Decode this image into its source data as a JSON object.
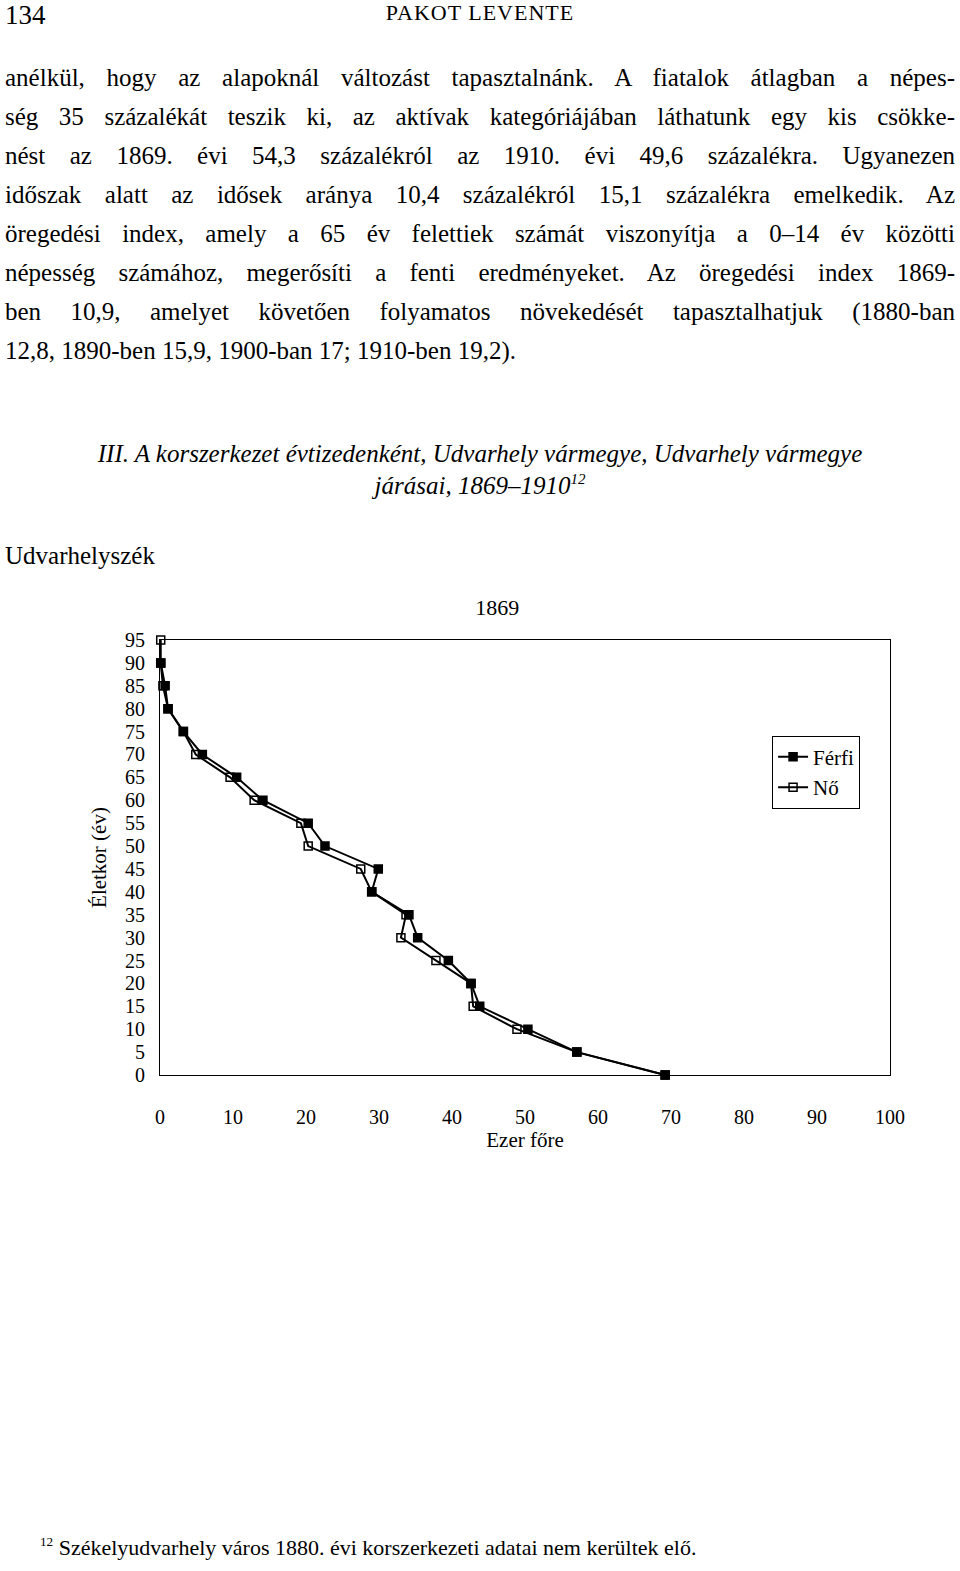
{
  "header": {
    "page_number": "134",
    "author": "PAKOT LEVENTE"
  },
  "paragraph_lines": [
    "anélkül, hogy az alapoknál változást tapasztalnánk. A fiatalok átlagban a népes-",
    "ség 35 százalékát teszik ki, az aktívak kategóriájában láthatunk egy kis csökke-",
    "nést az 1869. évi 54,3 százalékról az 1910. évi 49,6 százalékra. Ugyanezen",
    "időszak alatt az idősek aránya 10,4 százalékról 15,1 százalékra emelkedik. Az",
    "öregedési index, amely a 65 év felettiek számát viszonyítja a 0–14 év közötti",
    "népesség számához, megerősíti a fenti eredményeket. Az öregedési index 1869-",
    "ben 10,9, amelyet követően folyamatos növekedését tapasztalhatjuk (1880-ban",
    "12,8, 1890-ben 15,9, 1900-ban 17; 1910-ben 19,2)."
  ],
  "caption": {
    "lines": [
      "III. A korszerkezet évtizedenként, Udvarhely vármegye, Udvarhely vármegye",
      "járásai, 1869–1910"
    ],
    "footnote_mark": "12"
  },
  "region": "Udvarhelyszék",
  "chart_data": {
    "type": "line",
    "orientation": "horizontal",
    "title": "1869",
    "x_label": "Ezer főre",
    "y_label": "Életkor (év)",
    "y": [
      0,
      5,
      10,
      15,
      20,
      25,
      30,
      35,
      40,
      45,
      50,
      55,
      60,
      65,
      70,
      75,
      80,
      85,
      90,
      95
    ],
    "series": [
      {
        "name": "Férfi",
        "color": "#000000",
        "marker": "square",
        "line_style": "solid",
        "values": [
          69.2,
          57.1,
          50.4,
          43.8,
          42.6,
          39.5,
          35.3,
          34.1,
          29.0,
          29.9,
          22.6,
          20.3,
          14.1,
          10.5,
          5.8,
          3.2,
          1.1,
          0.7,
          0.1,
          null
        ]
      },
      {
        "name": "Nő",
        "color": "#000000",
        "marker": "square-open",
        "line_style": "solid",
        "values": [
          69.2,
          57.1,
          48.9,
          42.9,
          42.6,
          37.8,
          33.0,
          33.7,
          29.0,
          27.5,
          20.3,
          19.3,
          12.9,
          9.6,
          4.9,
          3.2,
          1.1,
          0.4,
          0.1,
          0.1
        ]
      }
    ],
    "xlim": [
      0,
      100
    ],
    "xticks": [
      0,
      10,
      20,
      30,
      40,
      50,
      60,
      70,
      80,
      90,
      100
    ],
    "ylim": [
      0,
      95
    ],
    "yticks": [
      0,
      5,
      10,
      15,
      20,
      25,
      30,
      35,
      40,
      45,
      50,
      55,
      60,
      65,
      70,
      75,
      80,
      85,
      90,
      95
    ],
    "grid": false,
    "legend": "upper right"
  },
  "footnote": {
    "mark": "12",
    "text": "Székelyudvarhely város 1880. évi korszerkezeti adatai nem kerültek elő."
  }
}
